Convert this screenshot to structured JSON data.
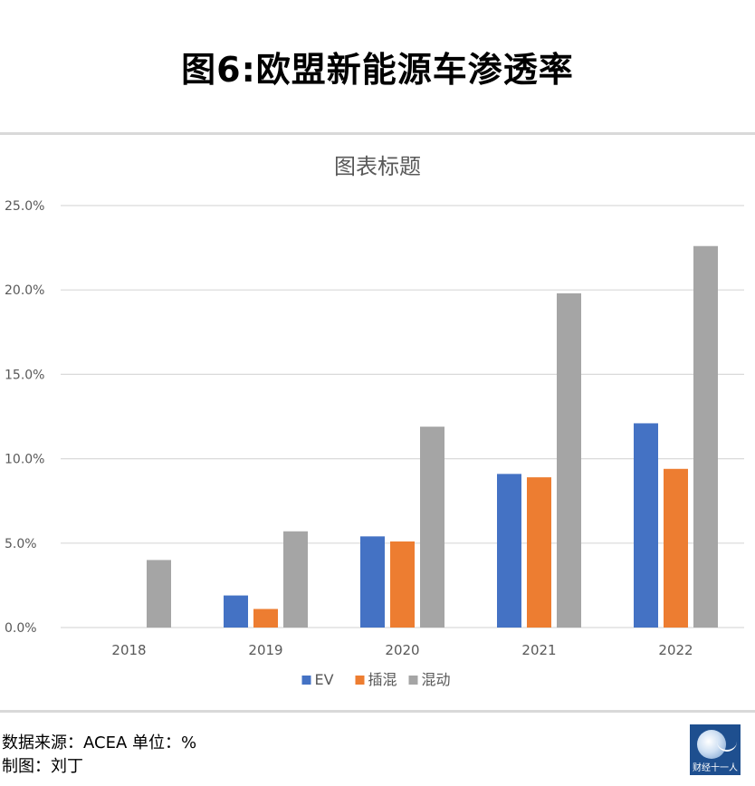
{
  "page": {
    "title": "图6:欧盟新能源车渗透率",
    "source_line": "数据来源：ACEA  单位：%",
    "maker_line": "制图：刘丁",
    "logo_text": "财经十一人"
  },
  "colors": {
    "EV": "#4472c4",
    "插混": "#ed7d31",
    "混动": "#a5a5a5",
    "gridline": "#d9d9d9",
    "axis_text": "#595959"
  },
  "chart_data": {
    "type": "bar",
    "title": "图表标题",
    "xlabel": "",
    "ylabel": "",
    "categories": [
      "2018",
      "2019",
      "2020",
      "2021",
      "2022"
    ],
    "series": [
      {
        "name": "EV",
        "values": [
          0,
          1.9,
          5.4,
          9.1,
          12.1
        ]
      },
      {
        "name": "插混",
        "values": [
          0,
          1.1,
          5.1,
          8.9,
          9.4
        ]
      },
      {
        "name": "混动",
        "values": [
          4.0,
          5.7,
          11.9,
          19.8,
          22.6
        ]
      }
    ],
    "ylim": [
      0,
      25
    ],
    "yticks": [
      {
        "value": 0,
        "label": "0.0%"
      },
      {
        "value": 5,
        "label": "5.0%"
      },
      {
        "value": 10,
        "label": "10.0%"
      },
      {
        "value": 15,
        "label": "15.0%"
      },
      {
        "value": 20,
        "label": "20.0%"
      },
      {
        "value": 25,
        "label": "25.0%"
      }
    ],
    "grid": true,
    "legend": "bottom-center"
  }
}
